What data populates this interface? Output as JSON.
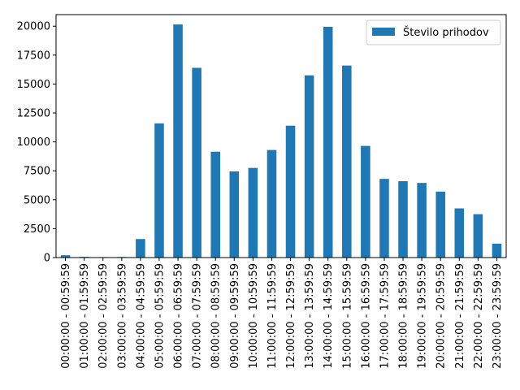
{
  "chart_data": {
    "type": "bar",
    "title": "",
    "xlabel": "",
    "ylabel": "",
    "ylim": [
      0,
      21000
    ],
    "yticks": [
      0,
      2500,
      5000,
      7500,
      10000,
      12500,
      15000,
      17500,
      20000
    ],
    "grid": false,
    "legend_position": "top-right",
    "categories": [
      "00:00:00 - 00:59:59",
      "01:00:00 - 01:59:59",
      "02:00:00 - 02:59:59",
      "03:00:00 - 03:59:59",
      "04:00:00 - 04:59:59",
      "05:00:00 - 05:59:59",
      "06:00:00 - 06:59:59",
      "07:00:00 - 07:59:59",
      "08:00:00 - 08:59:59",
      "09:00:00 - 09:59:59",
      "10:00:00 - 10:59:59",
      "11:00:00 - 11:59:59",
      "12:00:00 - 12:59:59",
      "13:00:00 - 13:59:59",
      "14:00:00 - 14:59:59",
      "15:00:00 - 15:59:59",
      "16:00:00 - 16:59:59",
      "17:00:00 - 17:59:59",
      "18:00:00 - 18:59:59",
      "19:00:00 - 19:59:59",
      "20:00:00 - 20:59:59",
      "21:00:00 - 21:59:59",
      "22:00:00 - 22:59:59",
      "23:00:00 - 23:59:59"
    ],
    "series": [
      {
        "name": "Število prihodov",
        "color": "#1f77b4",
        "values": [
          200,
          60,
          40,
          50,
          1600,
          11600,
          20150,
          16400,
          9150,
          7450,
          7750,
          9300,
          11400,
          15750,
          19950,
          16600,
          9650,
          6800,
          6600,
          6450,
          5700,
          4250,
          3750,
          1200
        ]
      }
    ]
  }
}
